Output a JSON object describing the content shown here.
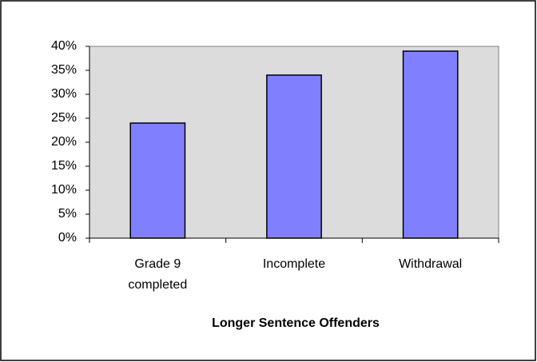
{
  "chart_data": {
    "type": "bar",
    "title": "Longer Sentence Offenders",
    "categories": [
      "Grade 9 completed",
      "Incomplete",
      "Withdrawal"
    ],
    "values": [
      24,
      34,
      39
    ],
    "color": "#8080ff",
    "ylim": [
      0,
      40
    ],
    "yticks": [
      {
        "value": 0,
        "label": "0%"
      },
      {
        "value": 5,
        "label": "5%"
      },
      {
        "value": 10,
        "label": "10%"
      },
      {
        "value": 15,
        "label": "15%"
      },
      {
        "value": 20,
        "label": "20%"
      },
      {
        "value": 25,
        "label": "25%"
      },
      {
        "value": 30,
        "label": "30%"
      },
      {
        "value": 35,
        "label": "35%"
      },
      {
        "value": 40,
        "label": "40%"
      }
    ],
    "grid": false
  }
}
